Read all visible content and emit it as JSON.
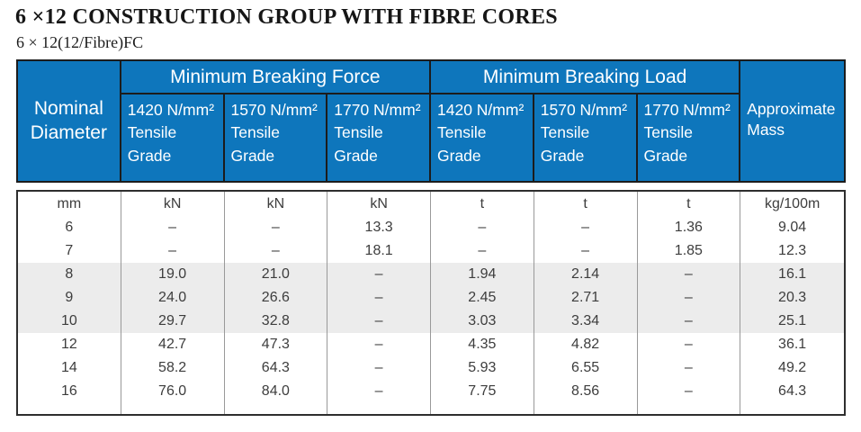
{
  "page": {
    "title": "6 ×12 CONSTRUCTION GROUP WITH FIBRE CORES",
    "subtitle": "6 × 12(12/Fibre)FC"
  },
  "colors": {
    "header_blue": "#0E76BC",
    "header_text": "#FFFFFF",
    "shaded_row": "#ECECEC",
    "body_text": "#3D3D3D"
  },
  "table": {
    "header": {
      "nominal_diameter": "Nominal\nDiameter",
      "breaking_force": "Minimum Breaking Force",
      "breaking_load": "Minimum Breaking Load",
      "approximate_mass": "Approximate\nMass",
      "grade_columns": [
        "1420 N/mm²\nTensile\nGrade",
        "1570 N/mm²\nTensile\nGrade",
        "1770 N/mm²\nTensile\nGrade",
        "1420 N/mm²\nTensile\nGrade",
        "1570 N/mm²\nTensile\nGrade",
        "1770 N/mm²\nTensile\nGrade"
      ]
    },
    "body_rows": [
      {
        "units": true,
        "shaded": false,
        "cells": [
          "mm",
          "kN",
          "kN",
          "kN",
          "t",
          "t",
          "t",
          "kg/100m"
        ]
      },
      {
        "units": false,
        "shaded": false,
        "cells": [
          "6",
          "–",
          "–",
          "13.3",
          "–",
          "–",
          "1.36",
          "9.04"
        ]
      },
      {
        "units": false,
        "shaded": false,
        "cells": [
          "7",
          "–",
          "–",
          "18.1",
          "–",
          "–",
          "1.85",
          "12.3"
        ]
      },
      {
        "units": false,
        "shaded": true,
        "cells": [
          "8",
          "19.0",
          "21.0",
          "–",
          "1.94",
          "2.14",
          "–",
          "16.1"
        ]
      },
      {
        "units": false,
        "shaded": true,
        "cells": [
          "9",
          "24.0",
          "26.6",
          "–",
          "2.45",
          "2.71",
          "–",
          "20.3"
        ]
      },
      {
        "units": false,
        "shaded": true,
        "cells": [
          "10",
          "29.7",
          "32.8",
          "–",
          "3.03",
          "3.34",
          "–",
          "25.1"
        ]
      },
      {
        "units": false,
        "shaded": false,
        "cells": [
          "12",
          "42.7",
          "47.3",
          "–",
          "4.35",
          "4.82",
          "–",
          "36.1"
        ]
      },
      {
        "units": false,
        "shaded": false,
        "cells": [
          "14",
          "58.2",
          "64.3",
          "–",
          "5.93",
          "6.55",
          "–",
          "49.2"
        ]
      },
      {
        "units": false,
        "shaded": false,
        "cells": [
          "16",
          "76.0",
          "84.0",
          "–",
          "7.75",
          "8.56",
          "–",
          "64.3"
        ]
      }
    ]
  }
}
